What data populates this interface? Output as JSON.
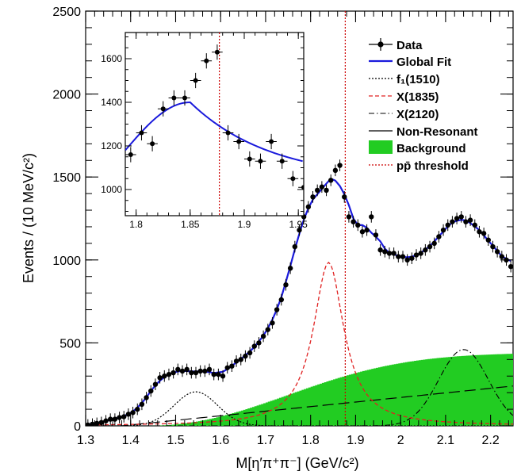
{
  "chart_data": {
    "type": "line",
    "xlabel": "M[η′π⁺π⁻] (GeV/c²)",
    "ylabel": "Events / (10 MeV/c²)",
    "xlim": [
      1.3,
      2.25
    ],
    "ylim": [
      0,
      2500
    ],
    "xticks": [
      "1.3",
      "1.4",
      "1.5",
      "1.6",
      "1.7",
      "1.8",
      "1.9",
      "2",
      "2.1",
      "2.2"
    ],
    "yticks": [
      "0",
      "500",
      "1000",
      "1500",
      "2000",
      "2500"
    ],
    "threshold_x": 1.877,
    "legend_position": "top-right",
    "legend": [
      {
        "label": "Data",
        "style": "marker",
        "color": "#000000"
      },
      {
        "label": "Global Fit",
        "style": "solid",
        "color": "#1a1adc"
      },
      {
        "label": "f₁(1510)",
        "style": "dotted",
        "color": "#000000"
      },
      {
        "label": "X(1835)",
        "style": "dashed",
        "color": "#e02020"
      },
      {
        "label": "X(2120)",
        "style": "dashdot",
        "color": "#000000"
      },
      {
        "label": "Non-Resonant",
        "style": "longdash",
        "color": "#000000"
      },
      {
        "label": "Background",
        "style": "fill",
        "color": "#22cc22"
      },
      {
        "label": "pp̄ threshold",
        "style": "dotted",
        "color": "#cc0000"
      }
    ],
    "data_points": {
      "x": [
        1.305,
        1.315,
        1.325,
        1.335,
        1.345,
        1.355,
        1.365,
        1.375,
        1.385,
        1.395,
        1.405,
        1.415,
        1.425,
        1.435,
        1.445,
        1.455,
        1.465,
        1.475,
        1.485,
        1.495,
        1.505,
        1.515,
        1.525,
        1.535,
        1.545,
        1.555,
        1.565,
        1.575,
        1.585,
        1.595,
        1.605,
        1.615,
        1.625,
        1.635,
        1.645,
        1.655,
        1.665,
        1.675,
        1.685,
        1.695,
        1.705,
        1.715,
        1.725,
        1.735,
        1.745,
        1.755,
        1.765,
        1.775,
        1.785,
        1.795,
        1.805,
        1.815,
        1.825,
        1.835,
        1.845,
        1.855,
        1.865,
        1.875,
        1.885,
        1.895,
        1.905,
        1.915,
        1.925,
        1.935,
        1.945,
        1.955,
        1.965,
        1.975,
        1.985,
        1.995,
        2.005,
        2.015,
        2.025,
        2.035,
        2.045,
        2.055,
        2.065,
        2.075,
        2.085,
        2.095,
        2.105,
        2.115,
        2.125,
        2.135,
        2.145,
        2.155,
        2.165,
        2.175,
        2.185,
        2.195,
        2.205,
        2.215,
        2.225,
        2.235,
        2.245
      ],
      "y": [
        5,
        10,
        15,
        20,
        30,
        40,
        40,
        50,
        55,
        70,
        80,
        100,
        130,
        170,
        210,
        250,
        290,
        300,
        310,
        320,
        340,
        330,
        340,
        320,
        320,
        330,
        330,
        340,
        310,
        310,
        300,
        350,
        360,
        390,
        400,
        420,
        440,
        480,
        500,
        540,
        580,
        620,
        700,
        760,
        850,
        950,
        1080,
        1180,
        1260,
        1320,
        1380,
        1420,
        1440,
        1420,
        1480,
        1540,
        1570,
        1380,
        1260,
        1230,
        1210,
        1170,
        1180,
        1260,
        1150,
        1060,
        1050,
        1040,
        1040,
        1020,
        1020,
        1000,
        1010,
        1030,
        1040,
        1060,
        1080,
        1100,
        1140,
        1180,
        1210,
        1230,
        1250,
        1260,
        1230,
        1240,
        1210,
        1170,
        1160,
        1120,
        1080,
        1050,
        1020,
        1000,
        960
      ],
      "yerr": 35
    },
    "inset": {
      "xlim": [
        1.79,
        1.955
      ],
      "ylim": [
        880,
        1720
      ],
      "xticks": [
        "1.8",
        "1.85",
        "1.9",
        "1.95"
      ],
      "yticks": [
        "1000",
        "1200",
        "1400",
        "1600"
      ],
      "data_points": {
        "x": [
          1.795,
          1.805,
          1.815,
          1.825,
          1.835,
          1.845,
          1.855,
          1.865,
          1.875,
          1.885,
          1.895,
          1.905,
          1.915,
          1.925,
          1.935,
          1.945,
          1.955
        ],
        "y": [
          1160,
          1260,
          1210,
          1370,
          1420,
          1420,
          1500,
          1590,
          1630,
          1260,
          1220,
          1140,
          1130,
          1220,
          1130,
          1050,
          1010
        ],
        "yerr": 35
      }
    }
  }
}
